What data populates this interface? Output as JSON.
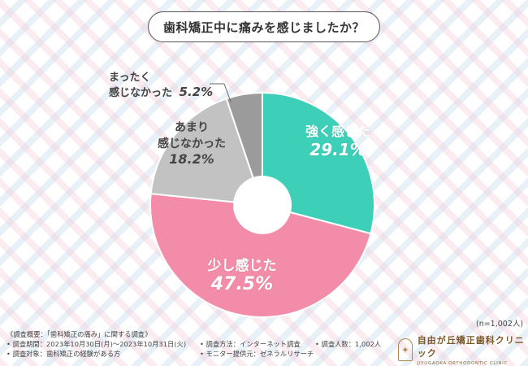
{
  "title": "歯科矯正中に痛みを感じましたか？",
  "sample_size": "(n=1,002人)",
  "chart_data": {
    "type": "pie",
    "style": "donut",
    "title": "歯科矯正中に痛みを感じましたか？",
    "unit": "%",
    "slices": [
      {
        "label": "強く感じた",
        "value": 29.1,
        "display": "29.1%",
        "color": "#3ecfb8"
      },
      {
        "label": "少し感じた",
        "value": 47.5,
        "display": "47.5%",
        "color": "#f28ca8"
      },
      {
        "label": "あまり感じなかった",
        "value": 18.2,
        "display": "18.2%",
        "color": "#c2c2c2"
      },
      {
        "label": "まったく感じなかった",
        "value": 5.2,
        "display": "5.2%",
        "color": "#9b9b9b"
      }
    ]
  },
  "labels": {
    "strong": {
      "name": "強く感じた",
      "pct": "29.1%"
    },
    "little": {
      "name": "少し感じた",
      "pct": "47.5%"
    },
    "notmuch": {
      "line1": "あまり",
      "line2": "感じなかった",
      "pct": "18.2%"
    },
    "none": {
      "line1": "まったく",
      "line2": "感じなかった",
      "pct": "5.2%"
    }
  },
  "notes": {
    "overview": "《調査概要：「歯科矯正の痛み」に関する調査》",
    "period": "• 調査期間：2023年10月30日(月)～2023年10月31日(火)",
    "method": "• 調査方法：インターネット調査",
    "people": "• 調査人数：1,002人",
    "target": "• 調査対象：歯科矯正の経験がある方",
    "provider": "• モニター提供元：ゼネラルリサーチ"
  },
  "logo": {
    "name_jp": "自由が丘矯正歯科クリニック",
    "name_en": "JIYUGAOKA ORTHODONTIC CLINIC"
  }
}
